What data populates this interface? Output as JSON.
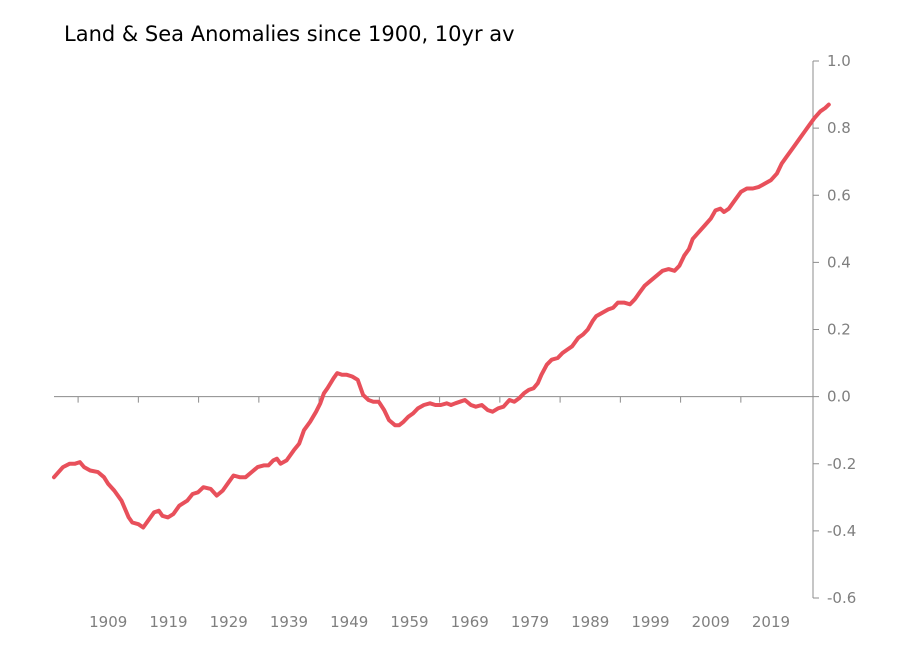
{
  "chart_data": {
    "type": "line",
    "title": "Land & Sea Anomalies since 1900, 10yr av",
    "xlabel": "",
    "ylabel": "",
    "ylim": [
      -0.6,
      1.0
    ],
    "xlim": [
      1900,
      2023
    ],
    "x_ticks": [
      "1909",
      "1919",
      "1929",
      "1939",
      "1949",
      "1959",
      "1969",
      "1979",
      "1989",
      "1999",
      "2009",
      "2019"
    ],
    "y_ticks": [
      "1.0",
      "0.8",
      "0.6",
      "0.4",
      "0.2",
      "0.0",
      "-0.2",
      "-0.4",
      "-0.6"
    ],
    "y_axis_position": "right",
    "grid": false,
    "legend": "none",
    "series": [
      {
        "color": "#e8505b",
        "points": [
          [
            1900.0,
            -0.24
          ],
          [
            1901.5,
            -0.21
          ],
          [
            1902.6,
            -0.2
          ],
          [
            1903.5,
            -0.2
          ],
          [
            1904.3,
            -0.195
          ],
          [
            1905.0,
            -0.21
          ],
          [
            1906.0,
            -0.22
          ],
          [
            1907.3,
            -0.225
          ],
          [
            1908.3,
            -0.24
          ],
          [
            1909.0,
            -0.26
          ],
          [
            1910.0,
            -0.28
          ],
          [
            1911.2,
            -0.31
          ],
          [
            1912.4,
            -0.36
          ],
          [
            1913.0,
            -0.375
          ],
          [
            1914.0,
            -0.38
          ],
          [
            1914.8,
            -0.39
          ],
          [
            1915.6,
            -0.37
          ],
          [
            1916.6,
            -0.345
          ],
          [
            1917.4,
            -0.34
          ],
          [
            1918.0,
            -0.355
          ],
          [
            1918.9,
            -0.36
          ],
          [
            1919.8,
            -0.35
          ],
          [
            1920.8,
            -0.325
          ],
          [
            1922.1,
            -0.31
          ],
          [
            1923.0,
            -0.29
          ],
          [
            1923.9,
            -0.285
          ],
          [
            1924.8,
            -0.27
          ],
          [
            1926.0,
            -0.275
          ],
          [
            1927.0,
            -0.295
          ],
          [
            1928.0,
            -0.28
          ],
          [
            1929.0,
            -0.255
          ],
          [
            1929.8,
            -0.235
          ],
          [
            1930.8,
            -0.24
          ],
          [
            1931.8,
            -0.24
          ],
          [
            1932.8,
            -0.225
          ],
          [
            1933.8,
            -0.21
          ],
          [
            1934.8,
            -0.205
          ],
          [
            1935.6,
            -0.205
          ],
          [
            1936.4,
            -0.19
          ],
          [
            1937.0,
            -0.185
          ],
          [
            1937.6,
            -0.2
          ],
          [
            1938.6,
            -0.19
          ],
          [
            1939.8,
            -0.16
          ],
          [
            1940.7,
            -0.14
          ],
          [
            1941.5,
            -0.1
          ],
          [
            1942.5,
            -0.075
          ],
          [
            1943.5,
            -0.045
          ],
          [
            1944.2,
            -0.02
          ],
          [
            1944.8,
            0.01
          ],
          [
            1945.4,
            0.025
          ],
          [
            1946.4,
            0.055
          ],
          [
            1947.0,
            0.07
          ],
          [
            1947.8,
            0.065
          ],
          [
            1948.6,
            0.065
          ],
          [
            1949.5,
            0.06
          ],
          [
            1950.4,
            0.05
          ],
          [
            1951.3,
            0.005
          ],
          [
            1952.2,
            -0.01
          ],
          [
            1953.0,
            -0.015
          ],
          [
            1953.9,
            -0.015
          ],
          [
            1954.8,
            -0.04
          ],
          [
            1955.6,
            -0.07
          ],
          [
            1956.6,
            -0.085
          ],
          [
            1957.3,
            -0.085
          ],
          [
            1958.0,
            -0.075
          ],
          [
            1958.8,
            -0.06
          ],
          [
            1959.6,
            -0.05
          ],
          [
            1960.4,
            -0.035
          ],
          [
            1961.4,
            -0.025
          ],
          [
            1962.4,
            -0.02
          ],
          [
            1963.3,
            -0.025
          ],
          [
            1964.2,
            -0.025
          ],
          [
            1965.2,
            -0.02
          ],
          [
            1965.9,
            -0.025
          ],
          [
            1966.6,
            -0.02
          ],
          [
            1967.4,
            -0.015
          ],
          [
            1968.2,
            -0.01
          ],
          [
            1969.2,
            -0.025
          ],
          [
            1970.0,
            -0.03
          ],
          [
            1971.0,
            -0.025
          ],
          [
            1972.0,
            -0.04
          ],
          [
            1972.8,
            -0.045
          ],
          [
            1973.7,
            -0.035
          ],
          [
            1974.6,
            -0.03
          ],
          [
            1975.6,
            -0.01
          ],
          [
            1976.4,
            -0.015
          ],
          [
            1977.2,
            -0.005
          ],
          [
            1978.0,
            0.01
          ],
          [
            1978.8,
            0.02
          ],
          [
            1979.6,
            0.025
          ],
          [
            1980.3,
            0.04
          ],
          [
            1980.9,
            0.065
          ],
          [
            1981.8,
            0.095
          ],
          [
            1982.6,
            0.11
          ],
          [
            1983.6,
            0.115
          ],
          [
            1984.4,
            0.13
          ],
          [
            1985.2,
            0.14
          ],
          [
            1986.0,
            0.15
          ],
          [
            1987.0,
            0.175
          ],
          [
            1987.8,
            0.185
          ],
          [
            1988.6,
            0.2
          ],
          [
            1989.4,
            0.225
          ],
          [
            1990.0,
            0.24
          ],
          [
            1991.0,
            0.25
          ],
          [
            1992.0,
            0.26
          ],
          [
            1992.8,
            0.265
          ],
          [
            1993.6,
            0.28
          ],
          [
            1994.6,
            0.28
          ],
          [
            1995.6,
            0.275
          ],
          [
            1996.4,
            0.29
          ],
          [
            1997.2,
            0.31
          ],
          [
            1998.0,
            0.33
          ],
          [
            1999.0,
            0.345
          ],
          [
            2000.0,
            0.36
          ],
          [
            2001.0,
            0.375
          ],
          [
            2002.0,
            0.38
          ],
          [
            2003.0,
            0.375
          ],
          [
            2003.8,
            0.39
          ],
          [
            2004.6,
            0.42
          ],
          [
            2005.4,
            0.44
          ],
          [
            2006.0,
            0.47
          ],
          [
            2007.0,
            0.49
          ],
          [
            2008.0,
            0.51
          ],
          [
            2009.0,
            0.53
          ],
          [
            2009.8,
            0.555
          ],
          [
            2010.6,
            0.56
          ],
          [
            2011.2,
            0.55
          ],
          [
            2012.0,
            0.56
          ],
          [
            2013.0,
            0.585
          ],
          [
            2014.0,
            0.61
          ],
          [
            2015.0,
            0.62
          ],
          [
            2016.0,
            0.62
          ],
          [
            2017.0,
            0.625
          ],
          [
            2018.0,
            0.635
          ],
          [
            2019.0,
            0.645
          ],
          [
            2020.0,
            0.665
          ],
          [
            2020.8,
            0.695
          ],
          [
            2021.6,
            0.715
          ],
          [
            2022.4,
            0.735
          ],
          [
            2023.0,
            0.75
          ],
          [
            2023.8,
            0.77
          ],
          [
            2024.6,
            0.79
          ],
          [
            2025.4,
            0.81
          ],
          [
            2026.2,
            0.83
          ],
          [
            2027.2,
            0.85
          ],
          [
            2028.0,
            0.86
          ],
          [
            2028.6,
            0.87
          ]
        ]
      }
    ]
  }
}
